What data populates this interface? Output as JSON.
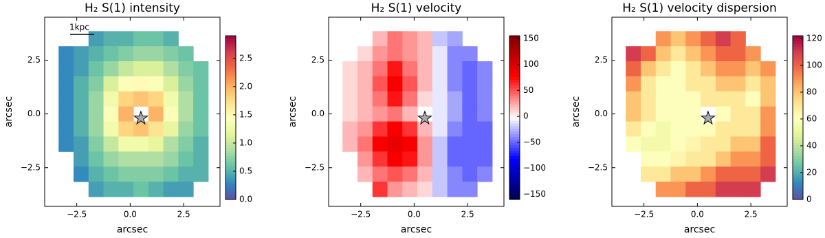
{
  "chart_data": [
    {
      "type": "heatmap",
      "title": "H₂ S(1) intensity",
      "xlabel": "arcsec",
      "ylabel": "arcsec",
      "xlim": [
        -4.0,
        4.2
      ],
      "ylim": [
        -4.3,
        4.5
      ],
      "xticks": [
        {
          "value": -2.5,
          "label": "−2.5"
        },
        {
          "value": 0,
          "label": "0.0"
        },
        {
          "value": 2.5,
          "label": "2.5"
        }
      ],
      "yticks": [
        {
          "value": -2.5,
          "label": "−2.5"
        },
        {
          "value": 0,
          "label": "0.0"
        },
        {
          "value": 2.5,
          "label": "2.5"
        }
      ],
      "colormap": "Spectral_r",
      "clim": [
        0,
        2.9
      ],
      "cticks": [
        {
          "value": 0,
          "label": "0.0"
        },
        {
          "value": 0.5,
          "label": "0.5"
        },
        {
          "value": 1,
          "label": "1.0"
        },
        {
          "value": 1.5,
          "label": "1.5"
        },
        {
          "value": 2,
          "label": "2.0"
        },
        {
          "value": 2.5,
          "label": "2.5"
        }
      ],
      "annotation": "1kpc",
      "marker": {
        "x": 0.5,
        "y": -0.2
      },
      "x": [
        -3.0,
        -2.3,
        -1.6,
        -0.9,
        -0.2,
        0.5,
        1.2,
        1.9,
        2.6,
        3.3
      ],
      "y": [
        3.5,
        2.8,
        2.1,
        1.4,
        0.7,
        0.0,
        -0.7,
        -1.4,
        -2.1,
        -2.8,
        -3.5
      ],
      "z": [
        [
          null,
          null,
          0.4,
          0.5,
          0.5,
          0.6,
          0.6,
          0.5,
          null,
          null
        ],
        [
          0.3,
          0.4,
          0.5,
          0.6,
          0.7,
          0.8,
          0.8,
          0.7,
          0.6,
          null
        ],
        [
          0.3,
          0.4,
          0.6,
          0.8,
          1.0,
          1.1,
          1.1,
          0.9,
          0.7,
          0.6
        ],
        [
          0.3,
          0.5,
          0.7,
          1.1,
          1.4,
          1.5,
          1.4,
          1.1,
          0.8,
          0.6
        ],
        [
          0.3,
          0.5,
          0.8,
          1.3,
          1.8,
          1.9,
          1.8,
          1.3,
          0.9,
          0.6
        ],
        [
          0.3,
          0.5,
          0.8,
          1.4,
          2.0,
          null,
          2.0,
          1.4,
          0.9,
          0.6
        ],
        [
          0.3,
          0.5,
          0.8,
          1.3,
          1.8,
          1.9,
          1.7,
          1.2,
          0.8,
          0.6
        ],
        [
          0.3,
          0.4,
          0.7,
          1.0,
          1.3,
          1.3,
          1.2,
          0.9,
          0.7,
          0.5
        ],
        [
          null,
          0.4,
          0.6,
          0.8,
          0.9,
          0.9,
          0.9,
          0.8,
          0.6,
          0.5
        ],
        [
          null,
          0.3,
          0.5,
          0.6,
          0.7,
          0.7,
          0.7,
          0.6,
          0.5,
          0.5
        ],
        [
          null,
          null,
          0.4,
          0.5,
          0.5,
          0.6,
          0.5,
          0.4,
          0.4,
          null
        ]
      ]
    },
    {
      "type": "heatmap",
      "title": "H₂ S(1) velocity",
      "xlabel": "arcsec",
      "ylabel": "arcsec",
      "xlim": [
        -4.0,
        4.2
      ],
      "ylim": [
        -4.3,
        4.5
      ],
      "xticks": [
        {
          "value": -2.5,
          "label": "−2.5"
        },
        {
          "value": 0,
          "label": "0.0"
        },
        {
          "value": 2.5,
          "label": "2.5"
        }
      ],
      "yticks": [
        {
          "value": -2.5,
          "label": "−2.5"
        },
        {
          "value": 0,
          "label": "0.0"
        },
        {
          "value": 2.5,
          "label": "2.5"
        }
      ],
      "colormap": "seismic",
      "clim": [
        -160,
        155
      ],
      "cticks": [
        {
          "value": -150,
          "label": "−150"
        },
        {
          "value": -100,
          "label": "−100"
        },
        {
          "value": -50,
          "label": "−50"
        },
        0,
        50,
        100,
        150
      ],
      "marker": {
        "x": 0.5,
        "y": -0.2
      },
      "x": [
        -3.0,
        -2.3,
        -1.6,
        -0.9,
        -0.2,
        0.5,
        1.2,
        1.9,
        2.6,
        3.3
      ],
      "y": [
        3.5,
        2.8,
        2.1,
        1.4,
        0.7,
        0.0,
        -0.7,
        -1.4,
        -2.1,
        -2.8,
        -3.5
      ],
      "z": [
        [
          null,
          null,
          20,
          40,
          30,
          20,
          -20,
          -30,
          null,
          null
        ],
        [
          null,
          10,
          30,
          40,
          30,
          20,
          -10,
          -40,
          -40,
          null
        ],
        [
          10,
          20,
          40,
          70,
          40,
          20,
          -10,
          -40,
          -50,
          -40
        ],
        [
          10,
          20,
          50,
          80,
          50,
          20,
          -10,
          -40,
          -50,
          -40
        ],
        [
          10,
          20,
          40,
          70,
          40,
          10,
          -10,
          -30,
          -50,
          -40
        ],
        [
          10,
          20,
          30,
          40,
          20,
          null,
          -10,
          -30,
          -50,
          -40
        ],
        [
          20,
          30,
          60,
          80,
          60,
          20,
          -10,
          -40,
          -50,
          -50
        ],
        [
          20,
          40,
          80,
          90,
          80,
          30,
          -20,
          -50,
          -50,
          -50
        ],
        [
          null,
          30,
          60,
          80,
          70,
          30,
          -20,
          -50,
          -50,
          -50
        ],
        [
          null,
          20,
          40,
          50,
          40,
          20,
          -20,
          -40,
          -50,
          -40
        ],
        [
          null,
          null,
          60,
          30,
          20,
          10,
          -20,
          -40,
          -40,
          null
        ]
      ]
    },
    {
      "type": "heatmap",
      "title": "H₂ S(1) velocity dispersion",
      "xlabel": "arcsec",
      "ylabel": "arcsec",
      "xlim": [
        -4.0,
        4.2
      ],
      "ylim": [
        -4.3,
        4.5
      ],
      "xticks": [
        {
          "value": -2.5,
          "label": "−2.5"
        },
        {
          "value": 0,
          "label": "0.0"
        },
        {
          "value": 2.5,
          "label": "2.5"
        }
      ],
      "yticks": [
        {
          "value": -2.5,
          "label": "−2.5"
        },
        {
          "value": 0,
          "label": "0.0"
        },
        {
          "value": 2.5,
          "label": "2.5"
        }
      ],
      "colormap": "Spectral_r",
      "clim": [
        0,
        122
      ],
      "cticks": [
        0,
        20,
        40,
        60,
        80,
        100,
        120
      ],
      "marker": {
        "x": 0.5,
        "y": -0.2
      },
      "x": [
        -3.0,
        -2.3,
        -1.6,
        -0.9,
        -0.2,
        0.5,
        1.2,
        1.9,
        2.6,
        3.3
      ],
      "y": [
        3.5,
        2.8,
        2.1,
        1.4,
        0.7,
        0.0,
        -0.7,
        -1.4,
        -2.1,
        -2.8,
        -3.5
      ],
      "z": [
        [
          null,
          null,
          90,
          80,
          90,
          100,
          110,
          100,
          null,
          null
        ],
        [
          110,
          100,
          80,
          70,
          80,
          90,
          100,
          100,
          90,
          null
        ],
        [
          100,
          80,
          70,
          60,
          70,
          80,
          90,
          90,
          80,
          90
        ],
        [
          90,
          70,
          60,
          60,
          70,
          70,
          80,
          80,
          70,
          80
        ],
        [
          80,
          70,
          60,
          60,
          60,
          70,
          70,
          70,
          60,
          80
        ],
        [
          80,
          70,
          60,
          60,
          60,
          null,
          60,
          70,
          70,
          90
        ],
        [
          70,
          60,
          55,
          60,
          60,
          60,
          70,
          70,
          70,
          90
        ],
        [
          60,
          55,
          55,
          60,
          65,
          70,
          70,
          80,
          80,
          100
        ],
        [
          null,
          60,
          60,
          65,
          70,
          70,
          80,
          90,
          90,
          100
        ],
        [
          null,
          70,
          70,
          80,
          80,
          90,
          100,
          100,
          100,
          110
        ],
        [
          null,
          null,
          90,
          90,
          100,
          100,
          110,
          110,
          110,
          null
        ]
      ]
    }
  ]
}
